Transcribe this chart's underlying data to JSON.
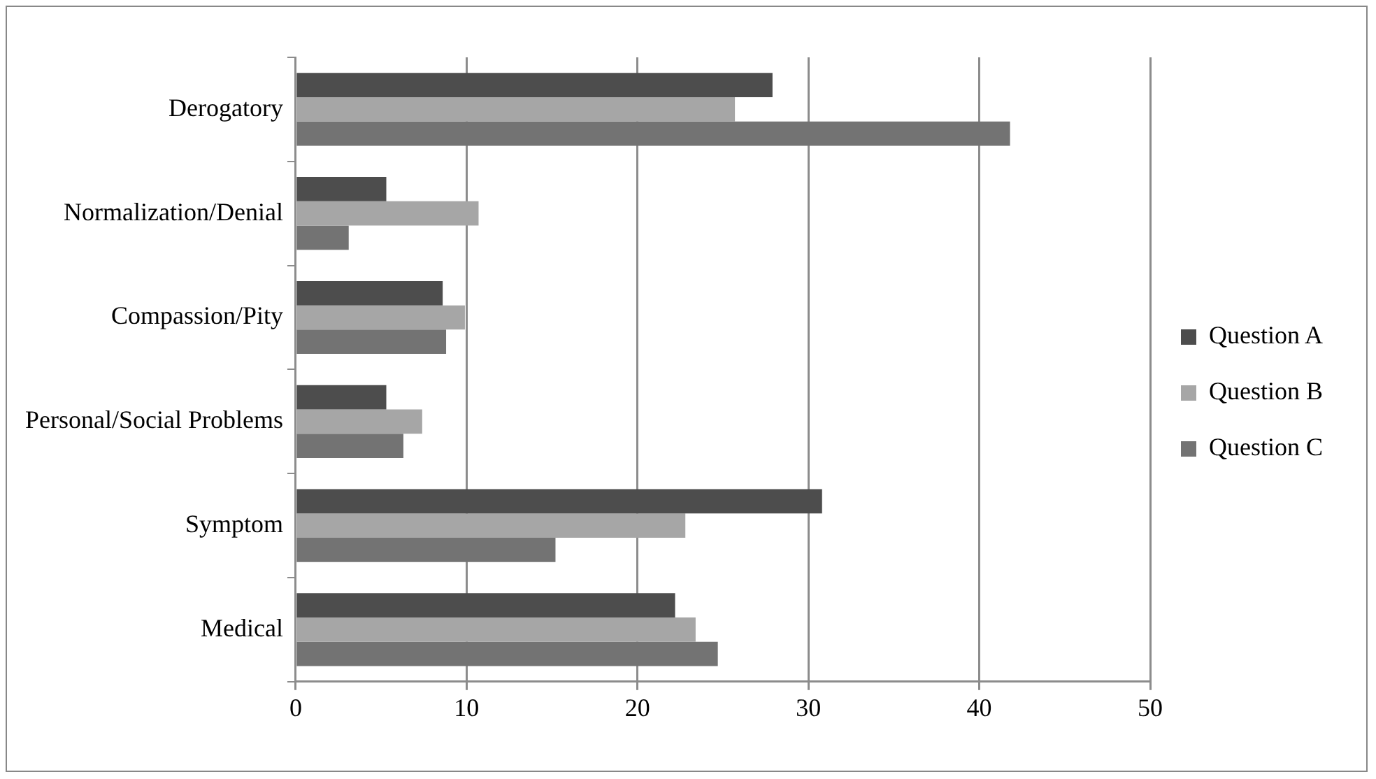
{
  "chart_data": {
    "type": "bar",
    "orientation": "horizontal",
    "categories": [
      "Derogatory",
      "Normalization/Denial",
      "Compassion/Pity",
      "Personal/Social Problems",
      "Symptom",
      "Medical"
    ],
    "series": [
      {
        "name": "Question A",
        "color": "#4d4d4d",
        "values": [
          27.9,
          5.3,
          8.6,
          5.3,
          30.8,
          22.2
        ]
      },
      {
        "name": "Question B",
        "color": "#a6a6a6",
        "values": [
          25.7,
          10.7,
          9.9,
          7.4,
          22.8,
          23.4
        ]
      },
      {
        "name": "Question C",
        "color": "#737373",
        "values": [
          41.8,
          3.1,
          8.8,
          6.3,
          15.2,
          24.7
        ]
      }
    ],
    "xlim": [
      0,
      50
    ],
    "xticks": [
      0,
      10,
      20,
      30,
      40,
      50
    ],
    "grid": "x",
    "legend": "right"
  }
}
